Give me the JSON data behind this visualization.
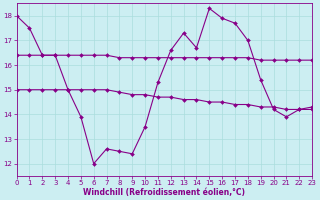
{
  "xlabel": "Windchill (Refroidissement éolien,°C)",
  "xlim": [
    0,
    23
  ],
  "ylim": [
    11.5,
    18.5
  ],
  "yticks": [
    12,
    13,
    14,
    15,
    16,
    17,
    18
  ],
  "xticks": [
    0,
    1,
    2,
    3,
    4,
    5,
    6,
    7,
    8,
    9,
    10,
    11,
    12,
    13,
    14,
    15,
    16,
    17,
    18,
    19,
    20,
    21,
    22,
    23
  ],
  "background_color": "#cceef2",
  "grid_color": "#aadddd",
  "line_color": "#880088",
  "line1_y": [
    18.0,
    17.5,
    16.4,
    16.4,
    15.0,
    13.9,
    12.0,
    12.6,
    12.5,
    12.4,
    13.5,
    15.3,
    16.6,
    17.3,
    16.7,
    18.3,
    17.9,
    17.7,
    17.0,
    15.4,
    14.2,
    13.9,
    14.2,
    14.3
  ],
  "line2_y": [
    16.4,
    16.4,
    16.4,
    16.4,
    16.4,
    16.4,
    16.4,
    16.4,
    16.3,
    16.3,
    16.3,
    16.3,
    16.3,
    16.3,
    16.3,
    16.3,
    16.3,
    16.3,
    16.3,
    16.2,
    16.2,
    16.2,
    16.2,
    16.2
  ],
  "line3_y": [
    15.0,
    15.0,
    15.0,
    15.0,
    15.0,
    15.0,
    15.0,
    15.0,
    14.9,
    14.8,
    14.8,
    14.7,
    14.7,
    14.6,
    14.6,
    14.5,
    14.5,
    14.4,
    14.4,
    14.3,
    14.3,
    14.2,
    14.2,
    14.2
  ]
}
